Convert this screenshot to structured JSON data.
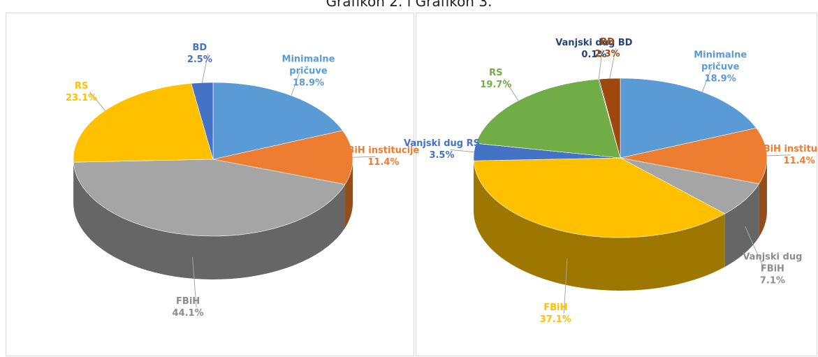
{
  "title": "Grafikon 2. i Grafikon 3.",
  "chart_data": [
    {
      "type": "pie",
      "categories": [
        "Minimalne pričuve",
        "BiH institucije",
        "FBiH",
        "RS",
        "BD"
      ],
      "values": [
        18.9,
        11.4,
        44.1,
        23.1,
        2.5
      ],
      "value_labels": [
        "18.9%",
        "11.4%",
        "44.1%",
        "23.1%",
        "2.5%"
      ],
      "colors": [
        "#5b9bd5",
        "#ed7d31",
        "#a5a5a5",
        "#ffc000",
        "#4472c4"
      ]
    },
    {
      "type": "pie",
      "categories": [
        "Minimalne pričuve",
        "BiH institucije",
        "Vanjski dug FBiH",
        "FBiH",
        "Vanjski dug RS",
        "RS",
        "Vanjski dug BD",
        "BD"
      ],
      "values": [
        18.9,
        11.4,
        7.1,
        37.1,
        3.5,
        19.7,
        0.1,
        2.3
      ],
      "value_labels": [
        "18.9%",
        "11.4%",
        "7.1%",
        "37.1%",
        "3.5%",
        "19.7%",
        "0.1%",
        "2.3%"
      ],
      "colors": [
        "#5b9bd5",
        "#ed7d31",
        "#a5a5a5",
        "#ffc000",
        "#4472c4",
        "#70ad47",
        "#264478",
        "#9e480e"
      ]
    }
  ]
}
